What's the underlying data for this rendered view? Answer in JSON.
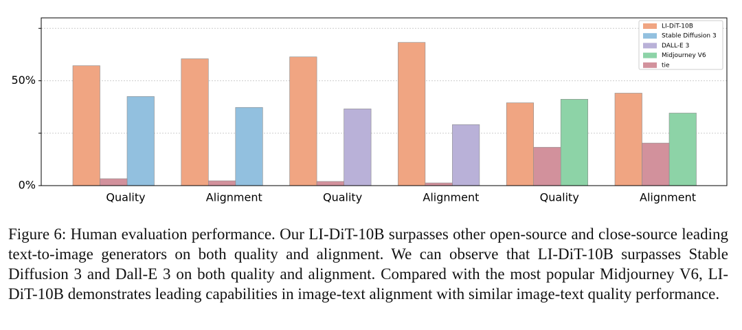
{
  "chart_data": {
    "type": "bar",
    "categories": [
      "Quality",
      "Alignment",
      "Quality",
      "Alignment",
      "Quality",
      "Alignment"
    ],
    "series": [
      {
        "name": "LI-DiT-10B",
        "color": "#f0a582",
        "values": [
          57.2,
          60.5,
          61.4,
          68.3,
          39.5,
          44.1
        ]
      },
      {
        "name": "Stable Diffusion 3",
        "color": "#92c0df",
        "values": [
          42.5,
          37.3,
          null,
          null,
          null,
          null
        ]
      },
      {
        "name": "DALL-E 3",
        "color": "#b9b1d8",
        "values": [
          null,
          null,
          36.6,
          29.1,
          null,
          null
        ]
      },
      {
        "name": "Midjourney V6",
        "color": "#8dd3a7",
        "values": [
          null,
          null,
          null,
          null,
          41.2,
          34.6
        ]
      },
      {
        "name": "tie",
        "color": "#d2919c",
        "values": [
          3.3,
          2.3,
          2.0,
          1.3,
          18.3,
          20.3
        ]
      }
    ],
    "ylim": [
      0,
      80
    ],
    "yticks": [
      {
        "value": 0,
        "label": "0%"
      },
      {
        "value": 25,
        "label": null
      },
      {
        "value": 50,
        "label": "50%"
      },
      {
        "value": 75,
        "label": null
      }
    ],
    "grid": true,
    "legend": "upper right"
  },
  "caption": "Figure 6: Human evaluation performance. Our LI-DiT-10B surpasses other open-source and close-source leading text-to-image generators on both quality and alignment. We can observe that LI-DiT-10B surpasses Stable Diffusion 3 and Dall-E 3 on both quality and alignment. Compared with the most popular Midjourney V6, LI-DiT-10B demonstrates leading capabilities in image-text alignment with similar image-text quality performance."
}
